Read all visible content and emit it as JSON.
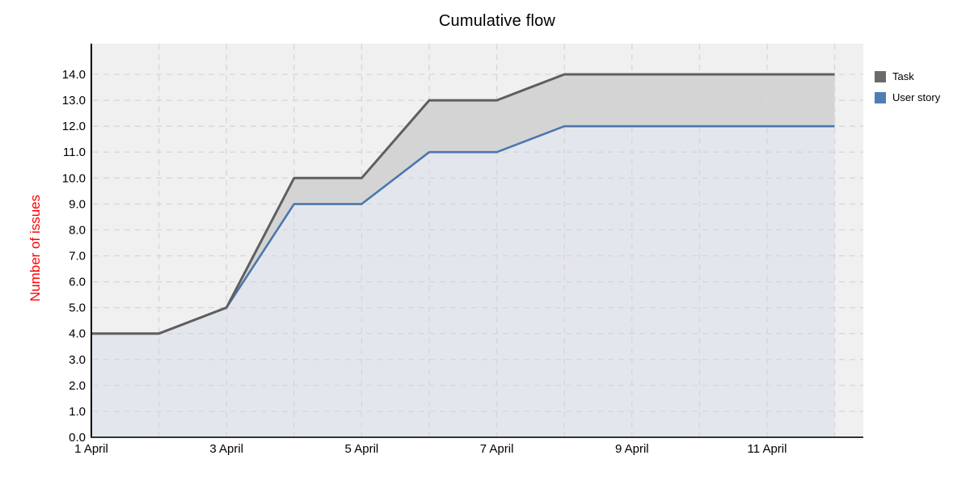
{
  "chart_data": {
    "type": "area",
    "title": "Cumulative flow",
    "xlabel": "",
    "ylabel": "Number of issues",
    "x_days": [
      1,
      2,
      3,
      4,
      5,
      6,
      7,
      8,
      9,
      10,
      11,
      12
    ],
    "series": [
      {
        "name": "Task",
        "values": [
          4,
          4,
          5,
          10,
          10,
          13,
          13,
          14,
          14,
          14,
          14,
          14
        ]
      },
      {
        "name": "User story",
        "values": [
          4,
          4,
          5,
          9,
          9,
          11,
          11,
          12,
          12,
          12,
          12,
          12
        ]
      }
    ],
    "x_tick_days": [
      1,
      3,
      5,
      7,
      9,
      11
    ],
    "x_tick_labels": [
      "1 April",
      "3 April",
      "5 April",
      "7 April",
      "9 April",
      "11 April"
    ],
    "y_tick_values": [
      0,
      1,
      2,
      3,
      4,
      5,
      6,
      7,
      8,
      9,
      10,
      11,
      12,
      13,
      14
    ],
    "y_tick_labels": [
      "0.0",
      "1.0",
      "2.0",
      "3.0",
      "4.0",
      "5.0",
      "6.0",
      "7.0",
      "8.0",
      "9.0",
      "10.0",
      "11.0",
      "12.0",
      "13.0",
      "14.0"
    ],
    "ylim": [
      0,
      15.2
    ],
    "xlim_days": [
      1,
      12.42
    ],
    "grid": true,
    "legend_position": "outside-top-right",
    "legend_entries": [
      "Task",
      "User story"
    ]
  },
  "colors": {
    "plot_bg": "#f0f0f0",
    "grid": "#d6d6d6",
    "y_axis": "#000000",
    "x_axis": "#333333",
    "tick_label": "#000000",
    "ylabel": "#ff0000",
    "task_line": "#5f5f5f",
    "task_fill": "#d4d4d4",
    "task_swatch": "#6b6b6b",
    "user_story_line": "#4a77ad",
    "user_story_fill": "#e3e7ed",
    "user_story_swatch": "#4d7fb5"
  }
}
